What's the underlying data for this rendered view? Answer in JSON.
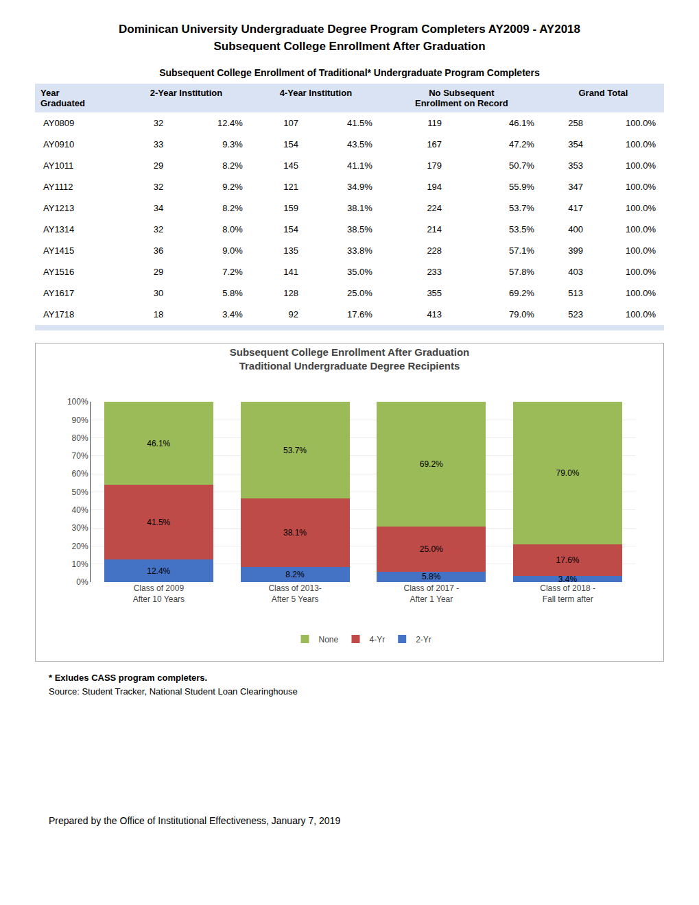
{
  "page_title": [
    "Dominican University Undergraduate Degree Program Completers AY2009 - AY2018",
    "Subsequent College Enrollment After Graduation"
  ],
  "table": {
    "title": "Subsequent College Enrollment of Traditional* Undergraduate Program Completers",
    "color": "#DAE3F3",
    "header": [
      [
        "Year",
        "Graduated"
      ],
      [
        "2-Year Institution"
      ],
      [
        "4-Year Institution"
      ],
      [
        "No Subsequent",
        "Enrollment on Record"
      ],
      [
        "Grand Total"
      ]
    ],
    "rows": [
      [
        "AY0809",
        "32",
        "12.4%",
        "107",
        "41.5%",
        "119",
        "46.1%",
        "258",
        "100.0%"
      ],
      [
        "AY0910",
        "33",
        "9.3%",
        "154",
        "43.5%",
        "167",
        "47.2%",
        "354",
        "100.0%"
      ],
      [
        "AY1011",
        "29",
        "8.2%",
        "145",
        "41.1%",
        "179",
        "50.7%",
        "353",
        "100.0%"
      ],
      [
        "AY1112",
        "32",
        "9.2%",
        "121",
        "34.9%",
        "194",
        "55.9%",
        "347",
        "100.0%"
      ],
      [
        "AY1213",
        "34",
        "8.2%",
        "159",
        "38.1%",
        "224",
        "53.7%",
        "417",
        "100.0%"
      ],
      [
        "AY1314",
        "32",
        "8.0%",
        "154",
        "38.5%",
        "214",
        "53.5%",
        "400",
        "100.0%"
      ],
      [
        "AY1415",
        "36",
        "9.0%",
        "135",
        "33.8%",
        "228",
        "57.1%",
        "399",
        "100.0%"
      ],
      [
        "AY1516",
        "29",
        "7.2%",
        "141",
        "35.0%",
        "233",
        "57.8%",
        "403",
        "100.0%"
      ],
      [
        "AY1617",
        "30",
        "5.8%",
        "128",
        "25.0%",
        "355",
        "69.2%",
        "513",
        "100.0%"
      ],
      [
        "AY1718",
        "18",
        "3.4%",
        "92",
        "17.6%",
        "413",
        "79.0%",
        "523",
        "100.0%"
      ]
    ]
  },
  "chart_data": {
    "type": "bar",
    "title": "Subsequent College Enrollment After Graduation",
    "subtitle": "Traditional Undergraduate Degree Recipients",
    "stacked": true,
    "categories": [
      "Class of 2009\nAfter 10 Years",
      "Class of 2013-\nAfter 5 Years",
      "Class of 2017 -\nAfter 1 Year",
      "Class of 2018 -\nFall term after"
    ],
    "series": [
      {
        "name": "2-Yr",
        "color": "#4472C4",
        "values": [
          12.4,
          8.2,
          5.8,
          3.4
        ],
        "value_labels": [
          "12.4%",
          "8.2%",
          "5.8%",
          "3.4%"
        ]
      },
      {
        "name": "4-Yr",
        "color": "#BE4B48",
        "values": [
          41.5,
          38.1,
          25.0,
          17.6
        ],
        "value_labels": [
          "41.5%",
          "38.1%",
          "25.0%",
          "17.6%"
        ]
      },
      {
        "name": "None",
        "color": "#9BBB59",
        "values": [
          46.1,
          53.7,
          69.2,
          79.0
        ],
        "value_labels": [
          "46.1%",
          "53.7%",
          "69.2%",
          "79.0%"
        ]
      }
    ],
    "data_labels": true,
    "ylim": [
      0,
      100
    ],
    "yticks": [
      {
        "value": 0,
        "label": "0%"
      },
      {
        "value": 10,
        "label": "10%"
      },
      {
        "value": 20,
        "label": "20%"
      },
      {
        "value": 30,
        "label": "30%"
      },
      {
        "value": 40,
        "label": "40%"
      },
      {
        "value": 50,
        "label": "50%"
      },
      {
        "value": 60,
        "label": "60%"
      },
      {
        "value": 70,
        "label": "70%"
      },
      {
        "value": 80,
        "label": "80%"
      },
      {
        "value": 90,
        "label": "90%"
      },
      {
        "value": 100,
        "label": "100%"
      }
    ],
    "grid": true,
    "legend": "bottom"
  },
  "footnotes": [
    "* Exludes CASS program completers.",
    "Source: Student Tracker, National Student Loan Clearinghouse"
  ],
  "prepared_by": "Prepared by the Office of Institutional Effectiveness, January 7, 2019"
}
